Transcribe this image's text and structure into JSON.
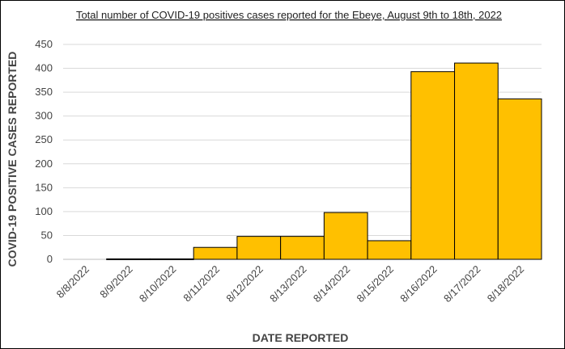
{
  "chart_data": {
    "type": "bar",
    "title": "Total number of COVID-19 positives cases reported for the Ebeye, August 9th to 18th, 2022",
    "xlabel": "DATE REPORTED",
    "ylabel": "COVID-19  POSITIVE CASES REPORTED",
    "categories": [
      "8/8/2022",
      "8/9/2022",
      "8/10/2022",
      "8/11/2022",
      "8/12/2022",
      "8/13/2022",
      "8/14/2022",
      "8/15/2022",
      "8/16/2022",
      "8/17/2022",
      "8/18/2022"
    ],
    "values": [
      0,
      1,
      1,
      25,
      48,
      48,
      98,
      39,
      393,
      411,
      336
    ],
    "ylim": [
      0,
      450
    ],
    "yticks": [
      0,
      50,
      100,
      150,
      200,
      250,
      300,
      350,
      400,
      450
    ],
    "grid": true,
    "legend": "none",
    "bar_color": "#FFC000",
    "bar_edge_color": "#000000",
    "grid_color": "#D9D9D9"
  }
}
